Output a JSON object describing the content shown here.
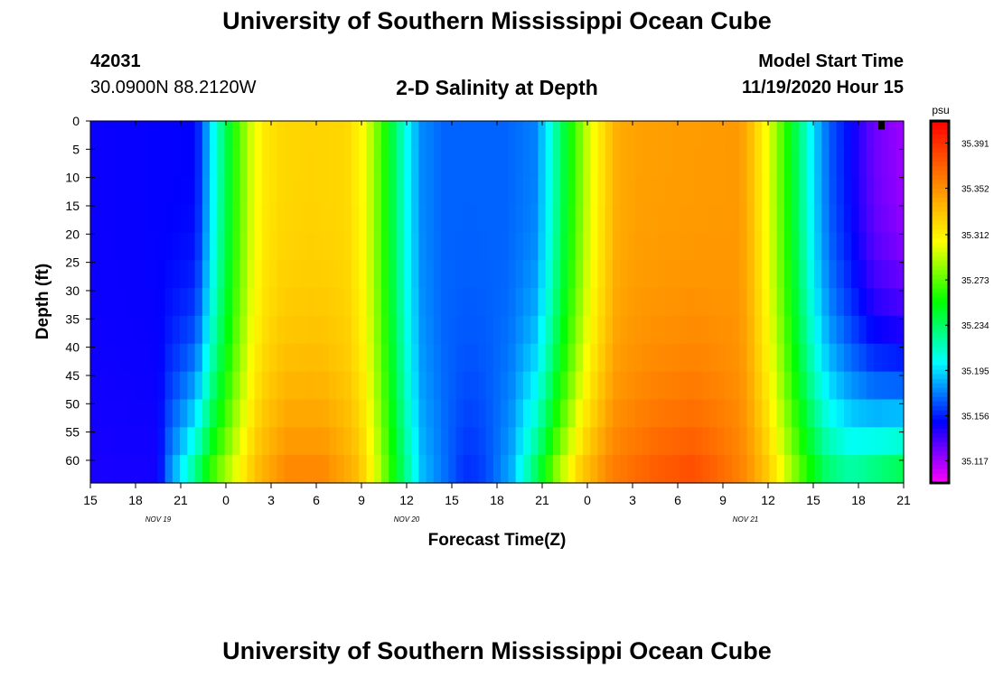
{
  "page": {
    "title_top": "University of Southern Mississippi Ocean Cube",
    "title_bottom": "University of Southern Mississippi Ocean Cube",
    "station_id": "42031",
    "station_coords": "30.0900N 88.2120W",
    "model_start_label": "Model Start Time",
    "model_start_value": "11/19/2020 Hour 15"
  },
  "chart_data": {
    "type": "heatmap",
    "title": "2-D Salinity at Depth",
    "xlabel": "Forecast Time(Z)",
    "ylabel": "Depth (ft)",
    "x_range_hours": [
      0,
      54
    ],
    "x_ticks": [
      "15",
      "18",
      "21",
      "0",
      "3",
      "6",
      "9",
      "12",
      "15",
      "18",
      "21",
      "0",
      "3",
      "6",
      "9",
      "12",
      "15",
      "18",
      "21"
    ],
    "date_labels": [
      {
        "text": "NOV 19",
        "hour": 4.5
      },
      {
        "text": "NOV 20",
        "hour": 21
      },
      {
        "text": "NOV 21",
        "hour": 43.5
      }
    ],
    "y_ticks": [
      0,
      5,
      10,
      15,
      20,
      25,
      30,
      35,
      40,
      45,
      50,
      55,
      60
    ],
    "y_range": [
      0,
      64
    ],
    "colorbar": {
      "unit": "psu",
      "labels": [
        "35.391",
        "35.352",
        "35.312",
        "35.273",
        "35.234",
        "35.195",
        "35.156",
        "35.117"
      ],
      "min": 35.098,
      "max": 35.41,
      "colors": [
        "#ff00ff",
        "#8000ff",
        "#0000ff",
        "#0080ff",
        "#00ffff",
        "#00ff80",
        "#00ff00",
        "#80ff00",
        "#ffff00",
        "#ffc000",
        "#ff8000",
        "#ff4000",
        "#ff0000"
      ]
    },
    "surface_profile": [
      {
        "h": 0,
        "v": 35.148
      },
      {
        "h": 7,
        "v": 35.15
      },
      {
        "h": 7.8,
        "v": 35.185
      },
      {
        "h": 8.7,
        "v": 35.225
      },
      {
        "h": 9.6,
        "v": 35.262
      },
      {
        "h": 10.6,
        "v": 35.295
      },
      {
        "h": 11.5,
        "v": 35.314
      },
      {
        "h": 12.7,
        "v": 35.322
      },
      {
        "h": 14.7,
        "v": 35.324
      },
      {
        "h": 17.0,
        "v": 35.322
      },
      {
        "h": 18.2,
        "v": 35.305
      },
      {
        "h": 19.3,
        "v": 35.27
      },
      {
        "h": 20.2,
        "v": 35.235
      },
      {
        "h": 21.1,
        "v": 35.2
      },
      {
        "h": 22.0,
        "v": 35.178
      },
      {
        "h": 23.5,
        "v": 35.17
      },
      {
        "h": 27.5,
        "v": 35.17
      },
      {
        "h": 29.5,
        "v": 35.176
      },
      {
        "h": 30.3,
        "v": 35.198
      },
      {
        "h": 31.2,
        "v": 35.232
      },
      {
        "h": 32.2,
        "v": 35.268
      },
      {
        "h": 33.1,
        "v": 35.298
      },
      {
        "h": 34.0,
        "v": 35.318
      },
      {
        "h": 35.0,
        "v": 35.34
      },
      {
        "h": 36.5,
        "v": 35.345
      },
      {
        "h": 43.0,
        "v": 35.348
      },
      {
        "h": 43.6,
        "v": 35.34
      },
      {
        "h": 44.4,
        "v": 35.318
      },
      {
        "h": 45.2,
        "v": 35.296
      },
      {
        "h": 46.2,
        "v": 35.262
      },
      {
        "h": 47.1,
        "v": 35.23
      },
      {
        "h": 48.0,
        "v": 35.195
      },
      {
        "h": 49.1,
        "v": 35.168
      },
      {
        "h": 50.5,
        "v": 35.15
      },
      {
        "h": 52.0,
        "v": 35.128
      },
      {
        "h": 54,
        "v": 35.118
      }
    ],
    "bottom_profile": [
      {
        "h": 0,
        "v": 35.145
      },
      {
        "h": 4.5,
        "v": 35.146
      },
      {
        "h": 5.2,
        "v": 35.178
      },
      {
        "h": 6.3,
        "v": 35.212
      },
      {
        "h": 7.3,
        "v": 35.245
      },
      {
        "h": 8.3,
        "v": 35.278
      },
      {
        "h": 9.6,
        "v": 35.305
      },
      {
        "h": 11.0,
        "v": 35.335
      },
      {
        "h": 13.0,
        "v": 35.358
      },
      {
        "h": 15.5,
        "v": 35.358
      },
      {
        "h": 17.8,
        "v": 35.335
      },
      {
        "h": 19.0,
        "v": 35.3
      },
      {
        "h": 20.0,
        "v": 35.262
      },
      {
        "h": 21.0,
        "v": 35.225
      },
      {
        "h": 22.0,
        "v": 35.19
      },
      {
        "h": 24.0,
        "v": 35.168
      },
      {
        "h": 24.8,
        "v": 35.158
      },
      {
        "h": 25.8,
        "v": 35.16
      },
      {
        "h": 26.6,
        "v": 35.168
      },
      {
        "h": 28.0,
        "v": 35.188
      },
      {
        "h": 29.0,
        "v": 35.222
      },
      {
        "h": 30.0,
        "v": 35.255
      },
      {
        "h": 31.0,
        "v": 35.29
      },
      {
        "h": 32.5,
        "v": 35.33
      },
      {
        "h": 34.5,
        "v": 35.36
      },
      {
        "h": 37.5,
        "v": 35.375
      },
      {
        "h": 40.0,
        "v": 35.382
      },
      {
        "h": 41.5,
        "v": 35.372
      },
      {
        "h": 43.5,
        "v": 35.355
      },
      {
        "h": 45.0,
        "v": 35.33
      },
      {
        "h": 46.2,
        "v": 35.3
      },
      {
        "h": 47.4,
        "v": 35.27
      },
      {
        "h": 48.8,
        "v": 35.24
      },
      {
        "h": 50.5,
        "v": 35.228
      },
      {
        "h": 52.0,
        "v": 35.24
      },
      {
        "h": 54,
        "v": 35.252
      }
    ],
    "marker": {
      "hour": 52.5,
      "depth_start": 0,
      "depth_end": 1.5
    }
  }
}
